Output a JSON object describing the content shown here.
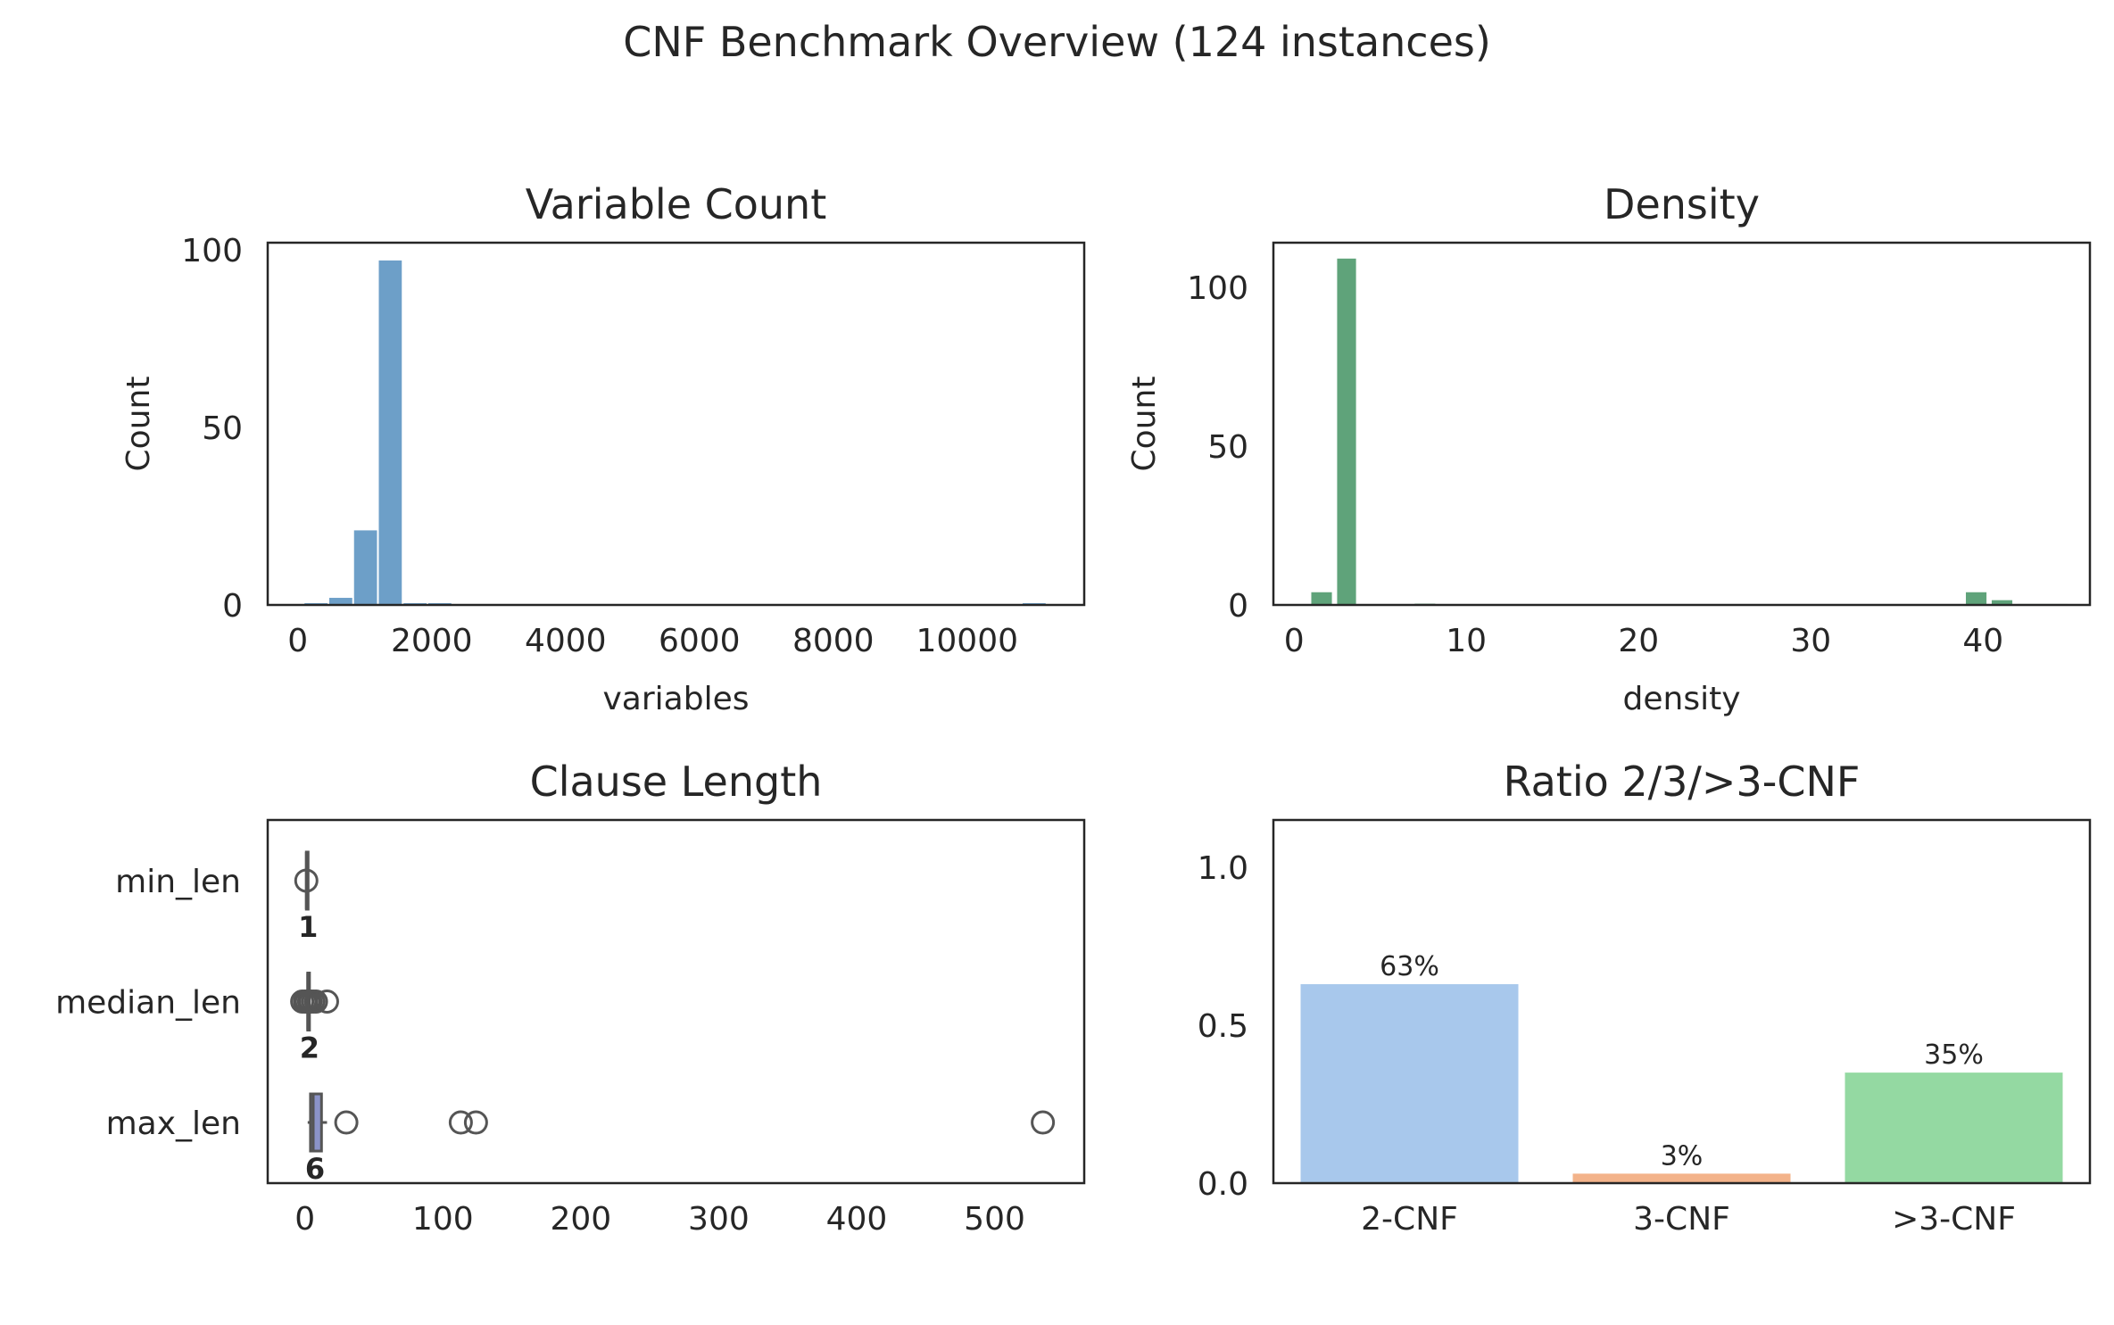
{
  "title": "CNF Benchmark Overview (124 instances)",
  "chart_data": [
    {
      "type": "bar",
      "subtype": "histogram",
      "title": "Variable Count",
      "xlabel": "variables",
      "ylabel": "Count",
      "color": "#6d9fc8",
      "xlim": [
        -450,
        11750
      ],
      "ylim": [
        0,
        102
      ],
      "xticks": [
        0,
        2000,
        4000,
        6000,
        8000,
        10000
      ],
      "yticks": [
        0,
        50,
        100
      ],
      "bins": [
        {
          "x0": 100,
          "x1": 470,
          "count": 0.5
        },
        {
          "x0": 470,
          "x1": 840,
          "count": 2
        },
        {
          "x0": 840,
          "x1": 1210,
          "count": 21
        },
        {
          "x0": 1210,
          "x1": 1580,
          "count": 97
        },
        {
          "x0": 1580,
          "x1": 1950,
          "count": 0.5
        },
        {
          "x0": 1950,
          "x1": 2320,
          "count": 0.5
        },
        {
          "x0": 10830,
          "x1": 11200,
          "count": 0.5
        }
      ]
    },
    {
      "type": "bar",
      "subtype": "histogram",
      "title": "Density",
      "xlabel": "density",
      "ylabel": "Count",
      "color": "#5fa37a",
      "xlim": [
        -1.2,
        46.2
      ],
      "ylim": [
        0,
        114
      ],
      "xticks": [
        0,
        10,
        20,
        30,
        40
      ],
      "yticks": [
        0,
        50,
        100
      ],
      "bins": [
        {
          "x0": 1.0,
          "x1": 2.3,
          "count": 4
        },
        {
          "x0": 2.5,
          "x1": 3.7,
          "count": 109
        },
        {
          "x0": 7.0,
          "x1": 8.3,
          "count": 0.4
        },
        {
          "x0": 39.0,
          "x1": 40.3,
          "count": 4
        },
        {
          "x0": 40.5,
          "x1": 41.8,
          "count": 1.5
        },
        {
          "x0": 42.0,
          "x1": 45.0,
          "count": 0.3
        }
      ]
    },
    {
      "type": "box",
      "orientation": "horizontal",
      "title": "Clause Length",
      "color": "#8b93c8",
      "xlim": [
        -27,
        565
      ],
      "xticks": [
        0,
        100,
        200,
        300,
        400,
        500
      ],
      "categories": [
        "min_len",
        "median_len",
        "max_len"
      ],
      "boxes": [
        {
          "name": "min_len",
          "q1": 1,
          "median": 1,
          "q3": 1,
          "whisker_low": 1,
          "whisker_high": 1,
          "outliers": [
            1
          ],
          "median_label": "1"
        },
        {
          "name": "median_len",
          "q1": 2,
          "median": 2,
          "q3": 2,
          "whisker_low": 2,
          "whisker_high": 2,
          "outliers": [
            -2,
            0,
            1,
            3,
            4,
            6,
            8,
            16
          ],
          "median_label": "2"
        },
        {
          "name": "max_len",
          "q1": 4,
          "median": 6,
          "q3": 12,
          "whisker_low": 2,
          "whisker_high": 16,
          "outliers": [
            30,
            113,
            124,
            535
          ],
          "median_label": "6"
        }
      ]
    },
    {
      "type": "bar",
      "title": "Ratio 2/3/>3-CNF",
      "categories": [
        "2-CNF",
        "3-CNF",
        ">3-CNF"
      ],
      "values": [
        0.63,
        0.03,
        0.35
      ],
      "labels": [
        "63%",
        "3%",
        "35%"
      ],
      "colors": [
        "#a8c8ec",
        "#f3b38a",
        "#94d9a2"
      ],
      "ylim": [
        0,
        1.15
      ],
      "yticks": [
        0.0,
        0.5,
        1.0
      ],
      "ytick_labels": [
        "0.0",
        "0.5",
        "1.0"
      ]
    }
  ]
}
